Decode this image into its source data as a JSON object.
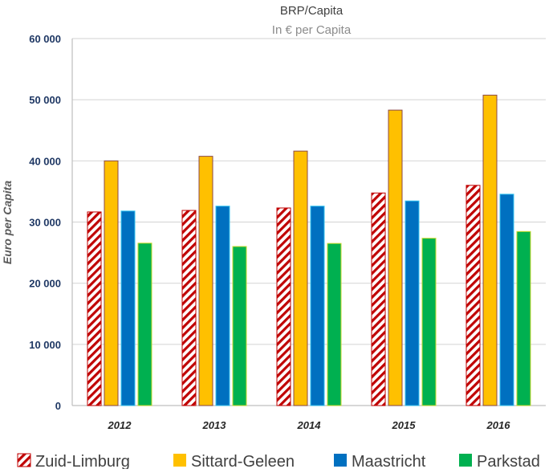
{
  "chart_data": {
    "type": "bar",
    "title": "BRP/Capita",
    "subtitle": "In € per Capita",
    "xlabel": "",
    "ylabel": "Euro per Capita",
    "ylim": [
      0,
      60000
    ],
    "yticks": [
      0,
      10000,
      20000,
      30000,
      40000,
      50000,
      60000
    ],
    "ytick_labels": [
      "0",
      "10 000",
      "20 000",
      "30 000",
      "40 000",
      "50 000",
      "60 000"
    ],
    "grid": true,
    "legend_position": "bottom",
    "categories": [
      "2012",
      "2013",
      "2014",
      "2015",
      "2016"
    ],
    "series": [
      {
        "name": "Zuid-Limburg",
        "values": [
          31650,
          31900,
          32300,
          34750,
          36000
        ],
        "color": "#C00000",
        "pattern": "diagonal-hatch"
      },
      {
        "name": "Sittard-Geleen",
        "values": [
          40000,
          40750,
          41600,
          48300,
          50750
        ],
        "color": "#FFC000"
      },
      {
        "name": "Maastricht",
        "values": [
          31800,
          32600,
          32600,
          33450,
          34550
        ],
        "color": "#0070C0"
      },
      {
        "name": "Parkstad",
        "values": [
          26550,
          26000,
          26500,
          27350,
          28450
        ],
        "color": "#00B050"
      }
    ]
  }
}
